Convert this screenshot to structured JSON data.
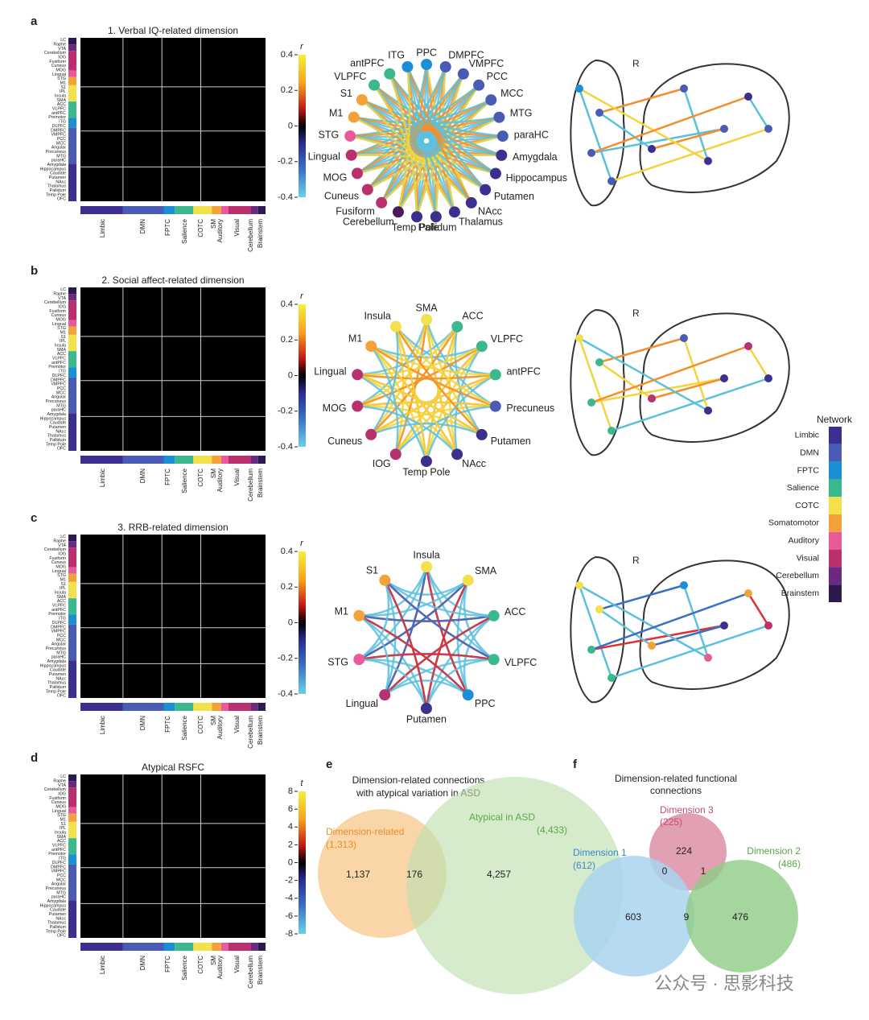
{
  "panels": [
    {
      "label": "a",
      "title": "1. Verbal IQ-related dimension",
      "colorbar_title": "r",
      "colorbar_ticks": [
        "0.4",
        "0.2",
        "0",
        "-0.2",
        "-0.4"
      ],
      "brain_label": "R",
      "nodes": [
        {
          "label": "PPC",
          "color": "#1a8fd6"
        },
        {
          "label": "DMPFC",
          "color": "#4a5bb5"
        },
        {
          "label": "VMPFC",
          "color": "#4a5bb5"
        },
        {
          "label": "PCC",
          "color": "#4a5bb5"
        },
        {
          "label": "MCC",
          "color": "#4a5bb5"
        },
        {
          "label": "MTG",
          "color": "#4a5bb5"
        },
        {
          "label": "paraHC",
          "color": "#4a5bb5"
        },
        {
          "label": "Amygdala",
          "color": "#3b2f8f"
        },
        {
          "label": "Hippocampus",
          "color": "#3b2f8f"
        },
        {
          "label": "Putamen",
          "color": "#3b2f8f"
        },
        {
          "label": "NAcc",
          "color": "#3b2f8f"
        },
        {
          "label": "Thalamus",
          "color": "#3b2f8f"
        },
        {
          "label": "Pallidum",
          "color": "#3b2f8f"
        },
        {
          "label": "Temp Pole",
          "color": "#3b2f8f"
        },
        {
          "label": "Cerebellum",
          "color": "#4a1a5e"
        },
        {
          "label": "Fusiform",
          "color": "#b8306e"
        },
        {
          "label": "Cuneus",
          "color": "#b8306e"
        },
        {
          "label": "MOG",
          "color": "#b8306e"
        },
        {
          "label": "Lingual",
          "color": "#b8306e"
        },
        {
          "label": "STG",
          "color": "#e85a9a"
        },
        {
          "label": "M1",
          "color": "#f5a13a"
        },
        {
          "label": "S1",
          "color": "#f5a13a"
        },
        {
          "label": "VLPFC",
          "color": "#3cb88f"
        },
        {
          "label": "antPFC",
          "color": "#3cb88f"
        },
        {
          "label": "ITG",
          "color": "#1a8fd6"
        }
      ],
      "edge_colors": [
        "#5bc0de",
        "#f28e2b",
        "#5bc0de",
        "#f5d33a"
      ]
    },
    {
      "label": "b",
      "title": "2. Social affect-related dimension",
      "colorbar_title": "r",
      "colorbar_ticks": [
        "0.4",
        "0.2",
        "0",
        "-0.2",
        "-0.4"
      ],
      "brain_label": "R",
      "nodes": [
        {
          "label": "SMA",
          "color": "#f2e14b"
        },
        {
          "label": "ACC",
          "color": "#3cb88f"
        },
        {
          "label": "VLPFC",
          "color": "#3cb88f"
        },
        {
          "label": "antPFC",
          "color": "#3cb88f"
        },
        {
          "label": "Precuneus",
          "color": "#4a5bb5"
        },
        {
          "label": "Putamen",
          "color": "#3b2f8f"
        },
        {
          "label": "NAcc",
          "color": "#3b2f8f"
        },
        {
          "label": "Temp Pole",
          "color": "#3b2f8f"
        },
        {
          "label": "IOG",
          "color": "#b8306e"
        },
        {
          "label": "Cuneus",
          "color": "#b8306e"
        },
        {
          "label": "MOG",
          "color": "#b8306e"
        },
        {
          "label": "Lingual",
          "color": "#b8306e"
        },
        {
          "label": "M1",
          "color": "#f5a13a"
        },
        {
          "label": "Insula",
          "color": "#f2e14b"
        }
      ],
      "edge_colors": [
        "#f5d33a",
        "#f28e2b",
        "#f5d33a",
        "#5bc0de"
      ]
    },
    {
      "label": "c",
      "title": "3. RRB-related dimension",
      "colorbar_title": "r",
      "colorbar_ticks": [
        "0.4",
        "0.2",
        "0",
        "-0.2",
        "-0.4"
      ],
      "brain_label": "R",
      "nodes": [
        {
          "label": "Insula",
          "color": "#f2e14b"
        },
        {
          "label": "SMA",
          "color": "#f2e14b"
        },
        {
          "label": "ACC",
          "color": "#3cb88f"
        },
        {
          "label": "VLPFC",
          "color": "#3cb88f"
        },
        {
          "label": "PPC",
          "color": "#1a8fd6"
        },
        {
          "label": "Putamen",
          "color": "#3b2f8f"
        },
        {
          "label": "Lingual",
          "color": "#b8306e"
        },
        {
          "label": "STG",
          "color": "#e85a9a"
        },
        {
          "label": "M1",
          "color": "#f5a13a"
        },
        {
          "label": "S1",
          "color": "#f5a13a"
        }
      ],
      "edge_colors": [
        "#5bc0de",
        "#3a6fc4",
        "#e03030",
        "#5bc0de"
      ]
    },
    {
      "label": "d",
      "title": "Atypical RSFC",
      "colorbar_title": "t",
      "colorbar_ticks": [
        "8",
        "6",
        "4",
        "2",
        "0",
        "-2",
        "-4",
        "-6",
        "-8"
      ]
    }
  ],
  "row_labels": [
    "LC",
    "Raphe",
    "VTA",
    "Cerebellum",
    "IOG",
    "Fusiform",
    "Cuneus",
    "MOG",
    "Lingual",
    "STG",
    "M1",
    "S1",
    "IPL",
    "Insula",
    "SMA",
    "ACC",
    "VLPFC",
    "antPFC",
    "Premotor",
    "ITG",
    "DLPFC",
    "DMPFC",
    "VMPFC",
    "PCC",
    "MCC",
    "Angular",
    "Precuneus",
    "MTG",
    "paraHC",
    "Amygdala",
    "Hippocampus",
    "Caudate",
    "Putamen",
    "NAcc",
    "Thalamus",
    "Pallidum",
    "Temp Pole",
    "OFC"
  ],
  "network_labels": [
    "Limbic",
    "DMN",
    "FPTC",
    "Salience",
    "COTC",
    "SM",
    "Auditory",
    "Visual",
    "Cerebellum",
    "Brainstem"
  ],
  "legend": {
    "title": "Network",
    "items": [
      {
        "label": "Limbic",
        "color": "#3b2f8f"
      },
      {
        "label": "DMN",
        "color": "#4a5bb5"
      },
      {
        "label": "FPTC",
        "color": "#1a8fd6"
      },
      {
        "label": "Salience",
        "color": "#3cb88f"
      },
      {
        "label": "COTC",
        "color": "#f2e14b"
      },
      {
        "label": "Somatomotor",
        "color": "#f5a13a"
      },
      {
        "label": "Auditory",
        "color": "#e85a9a"
      },
      {
        "label": "Visual",
        "color": "#b8306e"
      },
      {
        "label": "Cerebellum",
        "color": "#6a2a80"
      },
      {
        "label": "Brainstem",
        "color": "#2a1a50"
      }
    ]
  },
  "venn_e": {
    "label": "e",
    "title": [
      "Dimension-related connections",
      "with atypical variation in ASD"
    ],
    "left_name": "Dimension-related",
    "left_total": "(1,313)",
    "right_name": "Atypical in ASD",
    "right_total": "(4,433)",
    "left_only": "1,137",
    "overlap": "176",
    "right_only": "4,257"
  },
  "venn_f": {
    "label": "f",
    "title": [
      "Dimension-related functional",
      "connections"
    ],
    "d3_name": "Dimension 3",
    "d3_total": "(225)",
    "d1_name": "Dimension 1",
    "d1_total": "(612)",
    "d2_name": "Dimension 2",
    "d2_total": "(486)",
    "d3_only": "224",
    "d1_d3": "0",
    "d2_d3": "1",
    "d1_only": "603",
    "d1_d2": "9",
    "d2_only": "476"
  },
  "watermark": "公众号 · 思影科技"
}
